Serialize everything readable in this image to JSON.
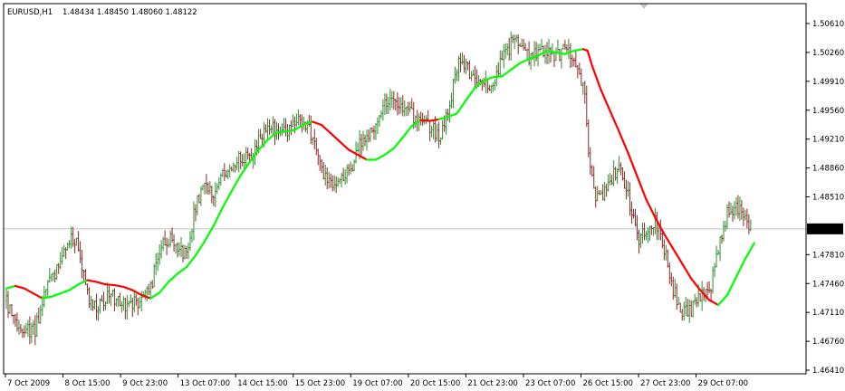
{
  "header": {
    "symbol": "EURUSD,H1",
    "quote": "1.48434 1.48450 1.48060 1.48122"
  },
  "current_price_label": "1.48122",
  "colors": {
    "bull": "#2f8f2f",
    "bear": "#8b2a2a",
    "ma_up": "#00ff00",
    "ma_down": "#ff0000",
    "price_line": "#c0c0c0",
    "price_label_bg": "#000000",
    "price_label_fg": "#ffffff"
  },
  "chart_data": {
    "type": "line",
    "instrument": "EURUSD",
    "timeframe": "H1",
    "x_tick_labels": [
      "7 Oct 2009",
      "8 Oct 15:00",
      "9 Oct 23:00",
      "13 Oct 07:00",
      "14 Oct 15:00",
      "15 Oct 23:00",
      "19 Oct 07:00",
      "20 Oct 15:00",
      "21 Oct 23:00",
      "23 Oct 07:00",
      "26 Oct 15:00",
      "27 Oct 23:00",
      "29 Oct 07:00"
    ],
    "y_tick_labels": [
      "1.50610",
      "1.50260",
      "1.49910",
      "1.49560",
      "1.49210",
      "1.48860",
      "1.48510",
      "1.47810",
      "1.47460",
      "1.47110",
      "1.46760",
      "1.46410"
    ],
    "ylim": [
      1.4641,
      1.5061
    ],
    "last_price": 1.48122,
    "price_path": {
      "x": [
        0,
        8,
        16,
        24,
        32,
        40,
        48,
        56,
        64,
        72,
        80,
        88,
        96,
        104,
        112,
        120,
        130,
        140,
        150,
        160,
        170,
        180,
        190,
        200,
        210,
        220,
        230,
        240,
        250,
        260,
        270,
        280,
        290,
        300,
        310,
        320,
        330,
        340,
        350,
        360,
        370,
        380,
        390,
        400,
        410,
        420,
        430,
        440,
        450,
        460,
        470,
        480,
        490,
        500,
        510,
        520,
        530,
        540,
        550,
        560,
        570,
        580,
        590,
        600,
        610,
        620,
        630,
        636,
        642,
        648,
        654,
        660,
        670,
        680,
        690,
        700,
        710,
        720,
        730,
        740,
        750,
        760,
        770,
        780,
        790,
        800,
        810,
        818,
        826
      ],
      "close": [
        1.4725,
        1.47,
        1.469,
        1.469,
        1.469,
        1.472,
        1.476,
        1.476,
        1.478,
        1.48,
        1.479,
        1.474,
        1.472,
        1.472,
        1.473,
        1.473,
        1.472,
        1.472,
        1.473,
        1.474,
        1.479,
        1.48,
        1.479,
        1.478,
        1.484,
        1.486,
        1.485,
        1.488,
        1.489,
        1.49,
        1.49,
        1.492,
        1.494,
        1.493,
        1.493,
        1.4945,
        1.4945,
        1.492,
        1.488,
        1.487,
        1.487,
        1.488,
        1.491,
        1.492,
        1.494,
        1.496,
        1.497,
        1.496,
        1.495,
        1.4945,
        1.4935,
        1.4925,
        1.495,
        1.501,
        1.501,
        1.4995,
        1.4985,
        1.499,
        1.5015,
        1.5035,
        1.504,
        1.502,
        1.503,
        1.503,
        1.502,
        1.503,
        1.502,
        1.5,
        1.497,
        1.488,
        1.4855,
        1.485,
        1.487,
        1.489,
        1.485,
        1.48,
        1.481,
        1.482,
        1.479,
        1.474,
        1.471,
        1.4715,
        1.473,
        1.473,
        1.479,
        1.483,
        1.484,
        1.4835,
        1.4812
      ]
    },
    "moving_average": {
      "x": [
        0,
        10,
        20,
        30,
        40,
        50,
        60,
        70,
        80,
        90,
        100,
        110,
        120,
        130,
        140,
        150,
        160,
        170,
        180,
        190,
        200,
        210,
        220,
        230,
        240,
        250,
        260,
        270,
        280,
        290,
        300,
        310,
        320,
        330,
        340,
        350,
        360,
        370,
        380,
        390,
        400,
        410,
        420,
        430,
        440,
        450,
        460,
        470,
        480,
        490,
        500,
        510,
        520,
        530,
        540,
        550,
        560,
        570,
        580,
        590,
        600,
        610,
        620,
        630,
        640,
        645,
        650,
        660,
        670,
        680,
        690,
        700,
        710,
        720,
        730,
        740,
        750,
        760,
        770,
        780,
        790,
        800,
        810,
        820,
        830
      ],
      "y": [
        1.474,
        1.4743,
        1.474,
        1.4734,
        1.4728,
        1.473,
        1.4734,
        1.4738,
        1.4745,
        1.475,
        1.4748,
        1.4745,
        1.4744,
        1.4742,
        1.4738,
        1.4732,
        1.4728,
        1.4735,
        1.4748,
        1.4758,
        1.4766,
        1.478,
        1.4797,
        1.4816,
        1.4838,
        1.4858,
        1.4877,
        1.4893,
        1.4908,
        1.492,
        1.4929,
        1.493,
        1.4932,
        1.4939,
        1.4942,
        1.4938,
        1.4928,
        1.4918,
        1.4908,
        1.4902,
        1.4896,
        1.4896,
        1.4902,
        1.491,
        1.4923,
        1.4937,
        1.4944,
        1.4943,
        1.4945,
        1.4948,
        1.4952,
        1.4968,
        1.4983,
        1.4992,
        1.4996,
        1.4997,
        1.5005,
        1.5013,
        1.5018,
        1.5022,
        1.5028,
        1.5026,
        1.5024,
        1.5028,
        1.503,
        1.5028,
        1.501,
        1.498,
        1.4955,
        1.493,
        1.4904,
        1.4876,
        1.4848,
        1.4826,
        1.4806,
        1.4788,
        1.477,
        1.4752,
        1.4738,
        1.4726,
        1.472,
        1.4732,
        1.4754,
        1.4776,
        1.4795
      ],
      "direction": [
        "up",
        "up",
        "down",
        "down",
        "down",
        "up",
        "up",
        "up",
        "up",
        "up",
        "down",
        "down",
        "down",
        "down",
        "down",
        "down",
        "down",
        "up",
        "up",
        "up",
        "up",
        "up",
        "up",
        "up",
        "up",
        "up",
        "up",
        "up",
        "up",
        "up",
        "up",
        "up",
        "up",
        "up",
        "up",
        "down",
        "down",
        "down",
        "down",
        "down",
        "down",
        "up",
        "up",
        "up",
        "up",
        "up",
        "up",
        "down",
        "down",
        "up",
        "up",
        "up",
        "up",
        "up",
        "up",
        "up",
        "up",
        "up",
        "up",
        "up",
        "up",
        "up",
        "up",
        "up",
        "up",
        "down",
        "down",
        "down",
        "down",
        "down",
        "down",
        "down",
        "down",
        "down",
        "down",
        "down",
        "down",
        "down",
        "down",
        "down",
        "down",
        "up",
        "up",
        "up",
        "up"
      ]
    },
    "grid": false
  }
}
